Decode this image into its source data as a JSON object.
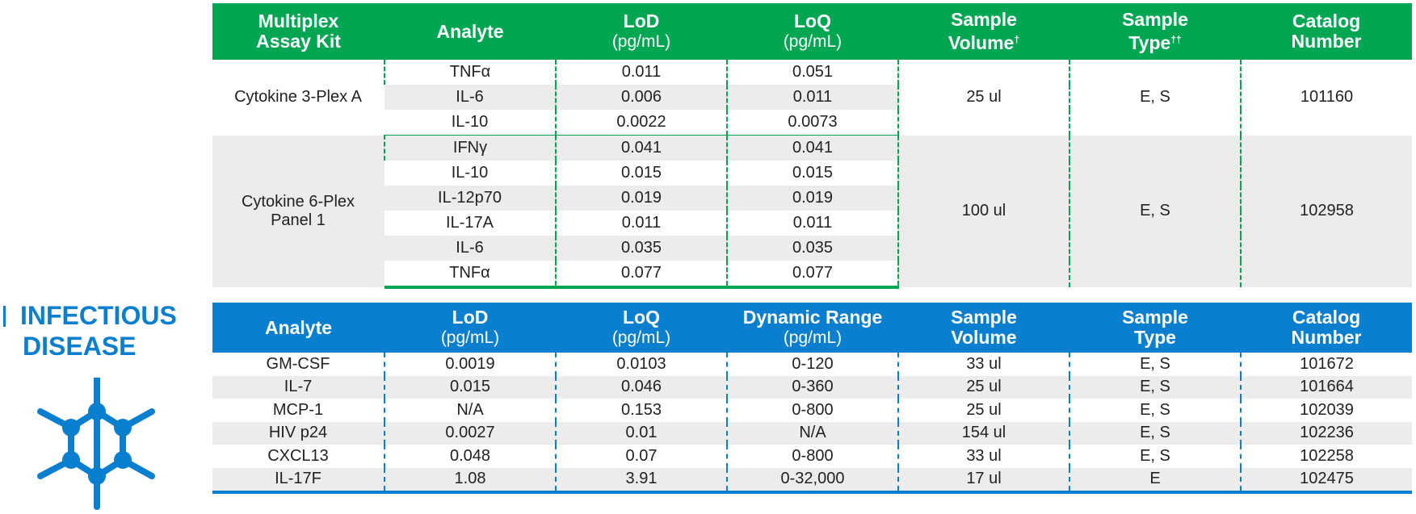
{
  "section_title": {
    "line1": "INFECTIOUS",
    "line2": "DISEASE"
  },
  "icon": "molecule-hexagon-icon",
  "colors": {
    "green": "#00a651",
    "blue": "#0b7fcf",
    "row_alt": "#ececec"
  },
  "table1": {
    "headers": [
      {
        "label": "Multiplex Assay Kit",
        "line1": "Multiplex",
        "line2": "Assay Kit"
      },
      {
        "label": "Analyte"
      },
      {
        "label": "LoD",
        "unit": "(pg/mL)"
      },
      {
        "label": "LoQ",
        "unit": "(pg/mL)"
      },
      {
        "line1": "Sample",
        "line2": "Volume",
        "sup": "†"
      },
      {
        "line1": "Sample",
        "line2": "Type",
        "sup": "††"
      },
      {
        "line1": "Catalog",
        "line2": "Number"
      }
    ],
    "groups": [
      {
        "kit": "Cytokine 3-Plex A",
        "volume": "25 ul",
        "type": "E, S",
        "catalog": "101160",
        "rows": [
          {
            "analyte": "TNFα",
            "lod": "0.011",
            "loq": "0.051"
          },
          {
            "analyte": "IL-6",
            "lod": "0.006",
            "loq": "0.011"
          },
          {
            "analyte": "IL-10",
            "lod": "0.0022",
            "loq": "0.0073"
          }
        ]
      },
      {
        "kit_line1": "Cytokine 6-Plex",
        "kit_line2": "Panel 1",
        "volume": "100 ul",
        "type": "E, S",
        "catalog": "102958",
        "rows": [
          {
            "analyte": "IFNγ",
            "lod": "0.041",
            "loq": "0.041"
          },
          {
            "analyte": "IL-10",
            "lod": "0.015",
            "loq": "0.015"
          },
          {
            "analyte": "IL-12p70",
            "lod": "0.019",
            "loq": "0.019"
          },
          {
            "analyte": "IL-17A",
            "lod": "0.011",
            "loq": "0.011"
          },
          {
            "analyte": "IL-6",
            "lod": "0.035",
            "loq": "0.035"
          },
          {
            "analyte": "TNFα",
            "lod": "0.077",
            "loq": "0.077"
          }
        ]
      }
    ]
  },
  "table2": {
    "headers": [
      {
        "label": "Analyte"
      },
      {
        "label": "LoD",
        "unit": "(pg/mL)"
      },
      {
        "label": "LoQ",
        "unit": "(pg/mL)"
      },
      {
        "label": "Dynamic Range",
        "unit": "(pg/mL)"
      },
      {
        "line1": "Sample",
        "line2": "Volume"
      },
      {
        "line1": "Sample",
        "line2": "Type"
      },
      {
        "line1": "Catalog",
        "line2": "Number"
      }
    ],
    "rows": [
      {
        "analyte": "GM-CSF",
        "lod": "0.0019",
        "loq": "0.0103",
        "range": "0-120",
        "volume": "33 ul",
        "type": "E, S",
        "catalog": "101672"
      },
      {
        "analyte": "IL-7",
        "lod": "0.015",
        "loq": "0.046",
        "range": "0-360",
        "volume": "25 ul",
        "type": "E, S",
        "catalog": "101664"
      },
      {
        "analyte": "MCP-1",
        "lod": "N/A",
        "loq": "0.153",
        "range": "0-800",
        "volume": "25 ul",
        "type": "E, S",
        "catalog": "102039"
      },
      {
        "analyte": "HIV p24",
        "lod": "0.0027",
        "loq": "0.01",
        "range": "N/A",
        "volume": "154 ul",
        "type": "E, S",
        "catalog": "102236"
      },
      {
        "analyte": "CXCL13",
        "lod": "0.048",
        "loq": "0.07",
        "range": "0-800",
        "volume": "33 ul",
        "type": "E, S",
        "catalog": "102258"
      },
      {
        "analyte": "IL-17F",
        "lod": "1.08",
        "loq": "3.91",
        "range": "0-32,000",
        "volume": "17 ul",
        "type": "E",
        "catalog": "102475"
      }
    ]
  }
}
